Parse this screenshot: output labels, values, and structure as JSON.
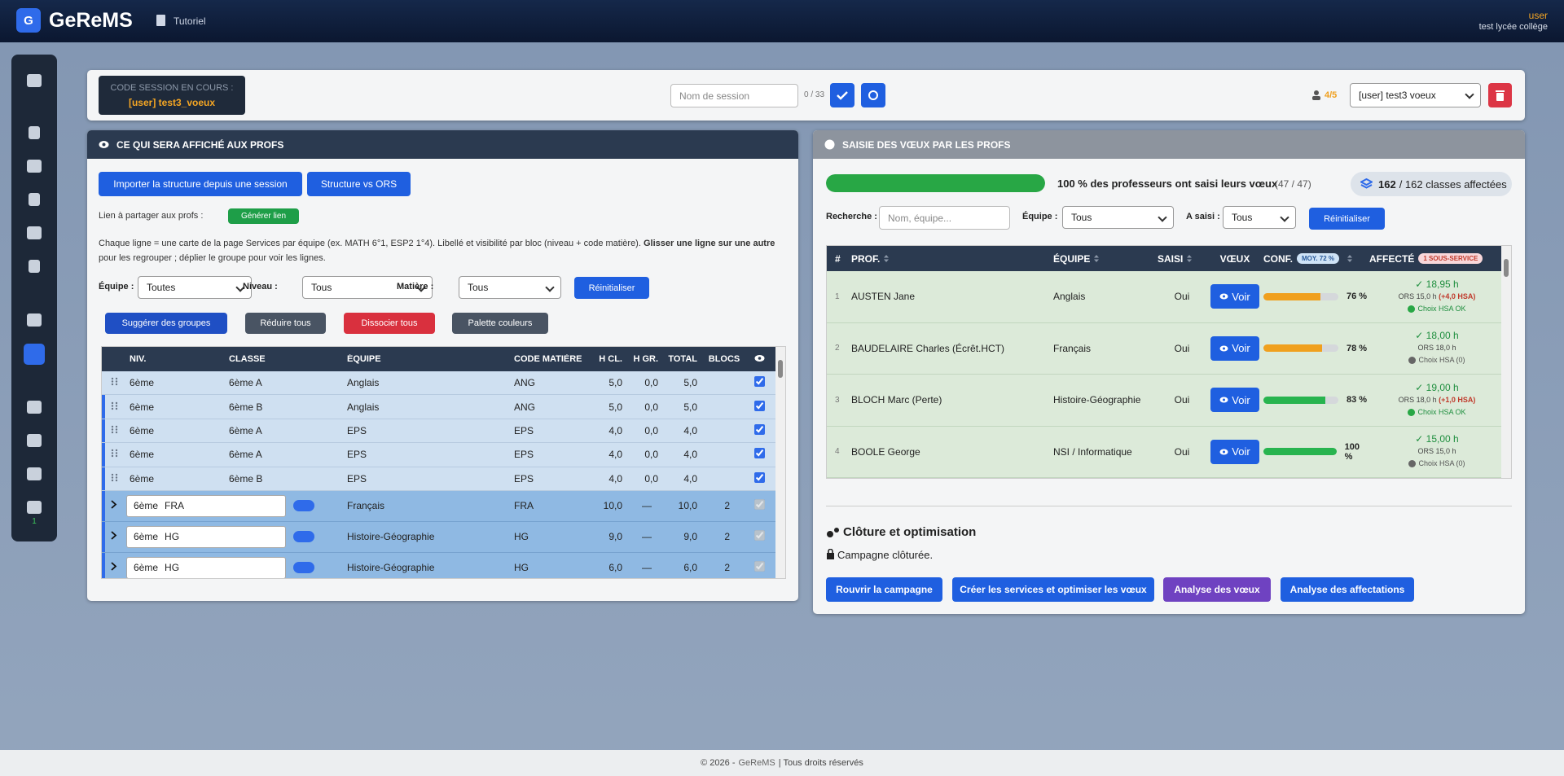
{
  "header": {
    "logo": "G",
    "brand": "GeReMS",
    "page": "Tutoriel",
    "user": "user",
    "school": "test lycée collège"
  },
  "sidebar": {
    "badge": "1"
  },
  "session": {
    "code_label": "CODE SESSION EN COURS :",
    "code": "[user] test3_voeux",
    "name_placeholder": "Nom de session",
    "name_count": "0 / 33",
    "users": "4/5",
    "selected": "[user] test3 voeux"
  },
  "left": {
    "title": "CE QUI SERA AFFICHÉ AUX PROFS",
    "import_button": "Importer la structure depuis une session",
    "ors_button": "Structure vs ORS",
    "share_label": "Lien à partager aux profs :",
    "share_button": "Générer lien",
    "help_text": "Chaque ligne = une carte de la page Services par équipe (ex. MATH 6°1, ESP2 1°4). Libellé et visibilité par bloc (niveau + code matière).",
    "help_bold": "Glisser une ligne sur une autre",
    "help_rest": "pour les regrouper ; déplier le groupe pour voir les lignes.",
    "filters": [
      {
        "label": "Équipe :",
        "value": "Toutes"
      },
      {
        "label": "Niveau :",
        "value": "Tous"
      },
      {
        "label": "Matière :",
        "value": "Tous"
      }
    ],
    "reset": "Réinitialiser",
    "actions": [
      "Suggérer des groupes",
      "Réduire tous",
      "Dissocier tous",
      "Palette couleurs"
    ],
    "table": {
      "columns": [
        "NIV.",
        "CLASSE",
        "ÉQUIPE",
        "CODE MATIÈRE",
        "H CL.",
        "H GR.",
        "TOTAL",
        "BLOCS"
      ],
      "rows": [
        {
          "niveau": "6ème",
          "classe": "6ème A",
          "equipe": "Anglais",
          "code": "ANG",
          "h_cl": "5,0",
          "h_gr": "0,0",
          "total": "5,0",
          "visible": true
        },
        {
          "niveau": "6ème",
          "classe": "6ème B",
          "equipe": "Anglais",
          "code": "ANG",
          "h_cl": "5,0",
          "h_gr": "0,0",
          "total": "5,0",
          "visible": true
        },
        {
          "niveau": "6ème",
          "classe": "6ème A",
          "equipe": "EPS",
          "code": "EPS",
          "h_cl": "4,0",
          "h_gr": "0,0",
          "total": "4,0",
          "visible": true
        },
        {
          "niveau": "6ème",
          "classe": "6ème A",
          "equipe": "EPS",
          "code": "EPS",
          "h_cl": "4,0",
          "h_gr": "0,0",
          "total": "4,0",
          "visible": true
        },
        {
          "niveau": "6ème",
          "classe": "6ème B",
          "equipe": "EPS",
          "code": "EPS",
          "h_cl": "4,0",
          "h_gr": "0,0",
          "total": "4,0",
          "visible": true
        }
      ],
      "groups": [
        {
          "niveau": "6ème",
          "label": "FRA",
          "equipe": "Français",
          "code": "FRA",
          "h_cl": "10,0",
          "h_gr": "—",
          "total": "10,0",
          "blocs": "2"
        },
        {
          "niveau": "6ème",
          "label": "HG",
          "equipe": "Histoire-Géographie",
          "code": "HG",
          "h_cl": "9,0",
          "h_gr": "—",
          "total": "9,0",
          "blocs": "2"
        },
        {
          "niveau": "6ème",
          "label": "HG",
          "equipe": "Histoire-Géographie",
          "code": "HG",
          "h_cl": "6,0",
          "h_gr": "—",
          "total": "6,0",
          "blocs": "2"
        }
      ]
    }
  },
  "right": {
    "title": "SAISIE DES VŒUX PAR LES PROFS",
    "progress": 100,
    "progress_text": "100 % des professeurs ont saisi leurs vœux",
    "progress_count": "(47 / 47)",
    "classes_done": "162",
    "classes_rest": "/ 162 classes affectées",
    "search_label": "Recherche :",
    "search_placeholder": "Nom, équipe...",
    "team_label": "Équipe :",
    "team_value": "Tous",
    "entered_label": "A saisi :",
    "entered_value": "Tous",
    "reset": "Réinitialiser",
    "table": {
      "columns": [
        "#",
        "PROF.",
        "ÉQUIPE",
        "SAISI",
        "VŒUX",
        "CONF.",
        "AFFECTÉ"
      ],
      "conf_badge": "MOY. 72 %",
      "affected_badge": "1 SOUS-SERVICE",
      "rows": [
        {
          "n": "1",
          "prof": "AUSTEN Jane",
          "equipe": "Anglais",
          "saisi": "Oui",
          "voeux": "Voir",
          "conf": 76,
          "conf_label": "76 %",
          "conf_color": "#f0a01e",
          "hours": "✓ 18,95 h",
          "ors": "ORS 15,0 h",
          "hsa": "(+4,0 HSA)",
          "choice": "Choix HSA OK",
          "choice_ok": true
        },
        {
          "n": "2",
          "prof": "BAUDELAIRE Charles (Écrêt.HCT)",
          "equipe": "Français",
          "saisi": "Oui",
          "voeux": "Voir",
          "conf": 78,
          "conf_label": "78 %",
          "conf_color": "#f0a01e",
          "hours": "✓ 18,00 h",
          "ors": "ORS 18,0 h",
          "choice": "Choix HSA (0)",
          "choice_ok": false
        },
        {
          "n": "3",
          "prof": "BLOCH Marc (Perte)",
          "equipe": "Histoire-Géographie",
          "saisi": "Oui",
          "voeux": "Voir",
          "conf": 83,
          "conf_label": "83 %",
          "conf_color": "#28b44f",
          "hours": "✓ 19,00 h",
          "ors": "ORS 18,0 h",
          "hsa": "(+1,0 HSA)",
          "choice": "Choix HSA OK",
          "choice_ok": true
        },
        {
          "n": "4",
          "prof": "BOOLE George",
          "equipe": "NSI / Informatique",
          "saisi": "Oui",
          "voeux": "Voir",
          "conf": 100,
          "conf_label": "100 %",
          "conf_color": "#28b44f",
          "hours": "✓ 15,00 h",
          "ors": "ORS 15,0 h",
          "choice": "Choix HSA (0)",
          "choice_ok": false
        }
      ]
    }
  },
  "closing": {
    "title": "Clôture et optimisation",
    "status": "Campagne clôturée.",
    "buttons": [
      "Rouvrir la campagne",
      "Créer les services et optimiser les vœux",
      "Analyse des vœux",
      "Analyse des affectations"
    ]
  },
  "footer": {
    "copyright": "© 2026 -",
    "brand": "GeReMS",
    "rights": "| Tous droits réservés"
  }
}
